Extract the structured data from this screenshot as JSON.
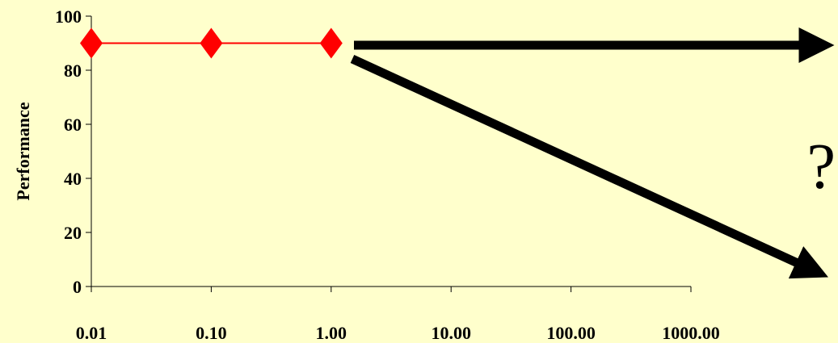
{
  "chart_data": {
    "type": "line",
    "title": "",
    "xlabel": "",
    "ylabel": "Performance",
    "x_scale": "log",
    "x_ticks": [
      "0.01",
      "0.10",
      "1.00",
      "10.00",
      "100.00",
      "1000.00"
    ],
    "x_tick_values": [
      0.01,
      0.1,
      1,
      10,
      100,
      1000
    ],
    "xlim": [
      0.01,
      1000
    ],
    "y_ticks": [
      "0",
      "20",
      "40",
      "60",
      "80",
      "100"
    ],
    "ylim": [
      0,
      100
    ],
    "grid": false,
    "series": [
      {
        "x": [
          0.01,
          0.1,
          1
        ],
        "y": [
          90,
          90,
          90
        ],
        "color": "#FF0000",
        "marker": "diamond"
      }
    ],
    "annotations": {
      "question_mark": "?",
      "arrow_color": "#000000",
      "arrows": [
        "flat continuation",
        "downward decline"
      ]
    }
  }
}
